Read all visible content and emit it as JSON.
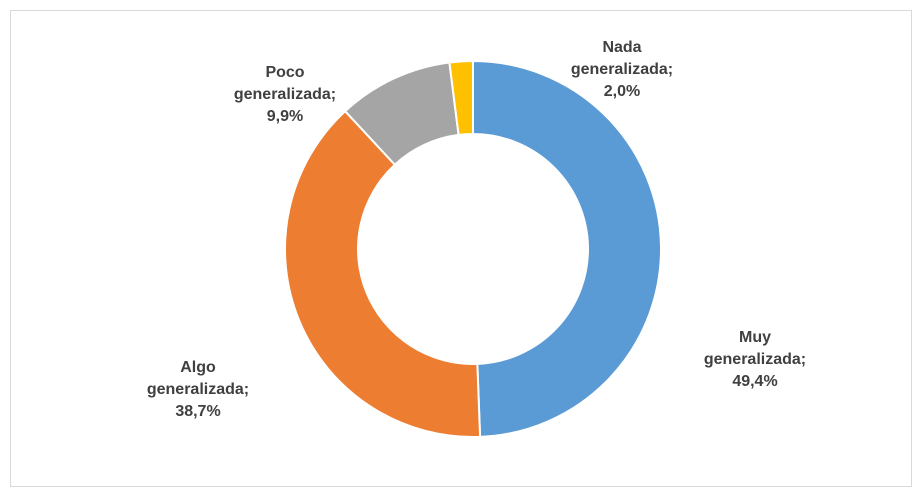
{
  "chart_data": {
    "type": "donut",
    "categories": [
      "Muy generalizada",
      "Algo generalizada",
      "Poco generalizada",
      "Nada generalizada"
    ],
    "values": [
      49.4,
      38.7,
      9.9,
      2.0
    ],
    "value_labels": [
      "49,4%",
      "38,7%",
      "9,9%",
      "2,0%"
    ],
    "label_separator": ";",
    "colors": [
      "#5b9bd5",
      "#ed7d31",
      "#a5a5a5",
      "#ffc000"
    ]
  }
}
